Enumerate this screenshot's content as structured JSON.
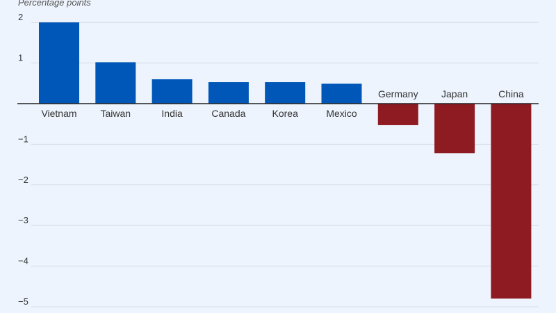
{
  "chart_data": {
    "type": "bar",
    "ylabel": "Percentage points",
    "ylim": [
      -5,
      2
    ],
    "yticks": [
      2,
      1,
      0,
      -1,
      -2,
      -3,
      -4,
      -5
    ],
    "ytick_labels": [
      "2",
      "1",
      "",
      "−1",
      "−2",
      "−3",
      "−4",
      "−5"
    ],
    "grid": true,
    "categories": [
      "Vietnam",
      "Taiwan",
      "India",
      "Canada",
      "Korea",
      "Mexico",
      "Germany",
      "Japan",
      "China"
    ],
    "values": [
      2.0,
      1.02,
      0.6,
      0.53,
      0.53,
      0.49,
      -0.53,
      -1.22,
      -4.8
    ],
    "colors": {
      "positive": "#0057b7",
      "negative": "#8f1b22",
      "grid": "#d3dbe6",
      "axis": "#222222",
      "text": "#333333",
      "background": "#eef4fd"
    }
  }
}
